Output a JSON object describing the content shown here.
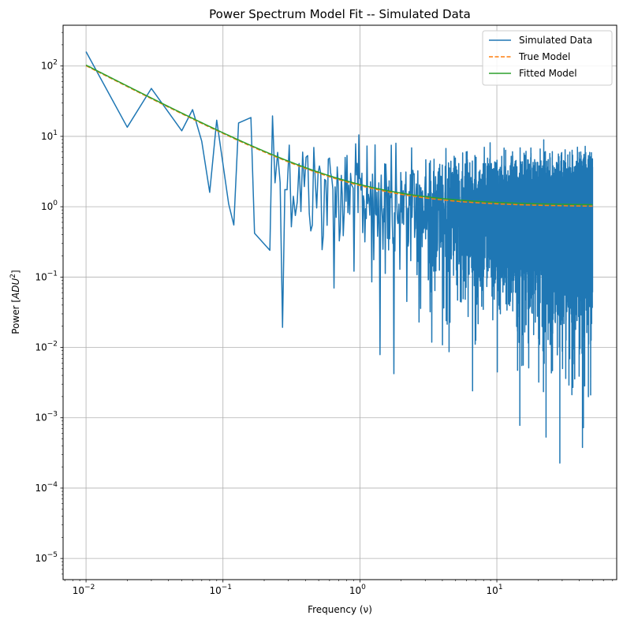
{
  "chart_data": {
    "type": "line",
    "title": "Power Spectrum Model Fit -- Simulated Data",
    "xlabel": "Frequency (ν)",
    "ylabel_main": "Power [",
    "ylabel_unit": "ADU",
    "ylabel_exp": "2",
    "ylabel_close": "]",
    "xscale": "log",
    "yscale": "log",
    "xlim": [
      0.0068,
      75
    ],
    "ylim": [
      5e-06,
      380
    ],
    "xticks": [
      {
        "value": 0.01,
        "base": "10",
        "exp": "−2"
      },
      {
        "value": 0.1,
        "base": "10",
        "exp": "−1"
      },
      {
        "value": 1,
        "base": "10",
        "exp": "0"
      },
      {
        "value": 10,
        "base": "10",
        "exp": "1"
      }
    ],
    "yticks": [
      {
        "value": 1e-05,
        "base": "10",
        "exp": "−5"
      },
      {
        "value": 0.0001,
        "base": "10",
        "exp": "−4"
      },
      {
        "value": 0.001,
        "base": "10",
        "exp": "−3"
      },
      {
        "value": 0.01,
        "base": "10",
        "exp": "−2"
      },
      {
        "value": 0.1,
        "base": "10",
        "exp": "−1"
      },
      {
        "value": 1,
        "base": "10",
        "exp": "0"
      },
      {
        "value": 10,
        "base": "10",
        "exp": "1"
      },
      {
        "value": 100,
        "base": "10",
        "exp": "2"
      }
    ],
    "grid": true,
    "legend_position": "top-right",
    "series": [
      {
        "name": "Simulated Data",
        "color": "#1f77b4",
        "style": "solid",
        "model": "noisy power spectrum around 1 + 1 / nu",
        "sample_points": [
          [
            0.01,
            160
          ],
          [
            0.02,
            13.5
          ],
          [
            0.03,
            48
          ],
          [
            0.05,
            12
          ],
          [
            0.06,
            24
          ],
          [
            0.07,
            8.5
          ],
          [
            0.08,
            1.6
          ],
          [
            0.09,
            17
          ],
          [
            0.11,
            1.1
          ],
          [
            0.12,
            0.55
          ],
          [
            0.13,
            15.5
          ],
          [
            0.16,
            18.5
          ],
          [
            0.17,
            0.42
          ],
          [
            0.22,
            0.24
          ],
          [
            0.23,
            19.5
          ]
        ]
      },
      {
        "name": "True Model",
        "color": "#ff7f0e",
        "style": "dashed",
        "model": "1 + 1 / nu"
      },
      {
        "name": "Fitted Model",
        "color": "#2ca02c",
        "style": "solid",
        "model": "1.05 + 1.02 / nu"
      }
    ]
  }
}
